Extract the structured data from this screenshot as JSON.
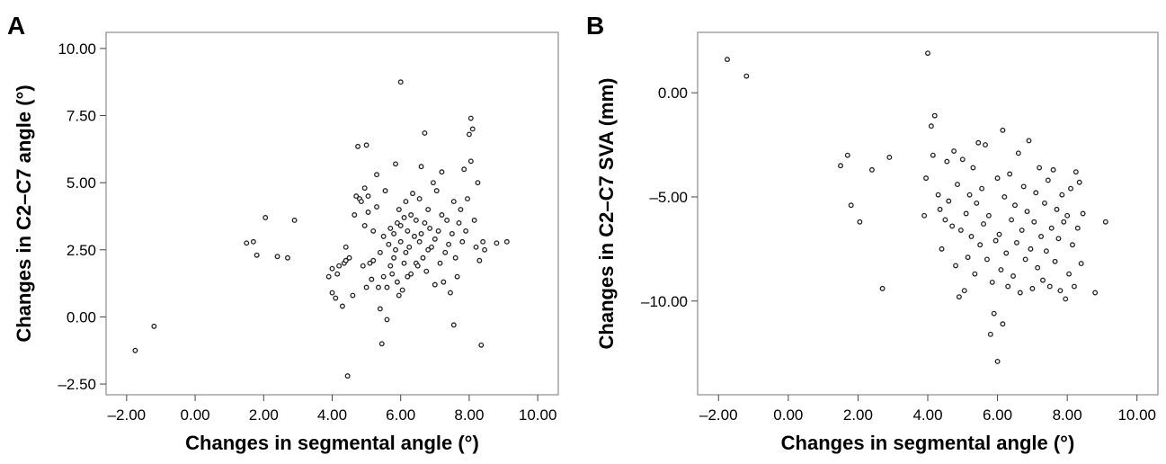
{
  "panels": [
    {
      "letter": "A",
      "chart_data": {
        "type": "scatter",
        "title": "",
        "xlabel": "Changes in segmental angle (°)",
        "ylabel": "Changes in C2–C7 angle (°)",
        "xlim": [
          -2.6,
          10.6
        ],
        "ylim": [
          -2.9,
          10.6
        ],
        "xticks": [
          -2,
          0,
          2,
          4,
          6,
          8,
          10
        ],
        "xtick_labels": [
          "–2.00",
          "0.00",
          "2.00",
          "4.00",
          "6.00",
          "8.00",
          "10.00"
        ],
        "yticks": [
          -2.5,
          0,
          2.5,
          5,
          7.5,
          10
        ],
        "ytick_labels": [
          "–2.50",
          "0.00",
          "2.50",
          "5.00",
          "7.50",
          "10.00"
        ],
        "grid": false,
        "series": [
          {
            "points": [
              [
                -1.75,
                -1.25
              ],
              [
                -1.2,
                -0.35
              ],
              [
                1.5,
                2.75
              ],
              [
                1.7,
                2.8
              ],
              [
                1.8,
                2.3
              ],
              [
                2.05,
                3.7
              ],
              [
                2.4,
                2.25
              ],
              [
                2.7,
                2.2
              ],
              [
                2.9,
                3.6
              ],
              [
                3.9,
                1.5
              ],
              [
                4.0,
                1.8
              ],
              [
                4.0,
                0.9
              ],
              [
                4.1,
                0.7
              ],
              [
                4.15,
                1.6
              ],
              [
                4.2,
                1.9
              ],
              [
                4.3,
                0.4
              ],
              [
                4.35,
                2.0
              ],
              [
                4.4,
                2.6
              ],
              [
                4.4,
                2.1
              ],
              [
                4.45,
                -2.2
              ],
              [
                4.5,
                2.2
              ],
              [
                4.6,
                0.8
              ],
              [
                4.65,
                3.8
              ],
              [
                4.7,
                4.5
              ],
              [
                4.75,
                6.35
              ],
              [
                4.8,
                4.4
              ],
              [
                4.85,
                4.3
              ],
              [
                4.9,
                1.9
              ],
              [
                4.95,
                3.4
              ],
              [
                4.95,
                4.8
              ],
              [
                5.0,
                6.4
              ],
              [
                5.0,
                1.1
              ],
              [
                5.05,
                3.9
              ],
              [
                5.05,
                4.5
              ],
              [
                5.1,
                2.0
              ],
              [
                5.15,
                1.4
              ],
              [
                5.2,
                2.1
              ],
              [
                5.2,
                3.2
              ],
              [
                5.3,
                5.3
              ],
              [
                5.3,
                4.1
              ],
              [
                5.35,
                1.1
              ],
              [
                5.4,
                2.4
              ],
              [
                5.4,
                0.3
              ],
              [
                5.45,
                -1.0
              ],
              [
                5.5,
                3.0
              ],
              [
                5.5,
                1.5
              ],
              [
                5.55,
                4.7
              ],
              [
                5.6,
                1.1
              ],
              [
                5.6,
                -0.1
              ],
              [
                5.65,
                2.7
              ],
              [
                5.7,
                1.9
              ],
              [
                5.7,
                3.3
              ],
              [
                5.75,
                1.6
              ],
              [
                5.8,
                2.2
              ],
              [
                5.8,
                3.1
              ],
              [
                5.85,
                2.5
              ],
              [
                5.85,
                5.7
              ],
              [
                5.9,
                1.3
              ],
              [
                5.9,
                3.5
              ],
              [
                5.95,
                0.8
              ],
              [
                5.95,
                4.0
              ],
              [
                6.0,
                2.8
              ],
              [
                6.0,
                3.4
              ],
              [
                6.0,
                8.75
              ],
              [
                6.05,
                1.0
              ],
              [
                6.1,
                2.0
              ],
              [
                6.1,
                3.7
              ],
              [
                6.15,
                2.4
              ],
              [
                6.15,
                4.3
              ],
              [
                6.2,
                1.5
              ],
              [
                6.2,
                3.2
              ],
              [
                6.25,
                2.6
              ],
              [
                6.3,
                3.8
              ],
              [
                6.3,
                1.6
              ],
              [
                6.35,
                4.6
              ],
              [
                6.4,
                3.0
              ],
              [
                6.45,
                2.0
              ],
              [
                6.45,
                3.6
              ],
              [
                6.5,
                1.9
              ],
              [
                6.55,
                2.8
              ],
              [
                6.55,
                4.4
              ],
              [
                6.6,
                5.6
              ],
              [
                6.6,
                3.1
              ],
              [
                6.65,
                2.2
              ],
              [
                6.7,
                6.85
              ],
              [
                6.7,
                3.5
              ],
              [
                6.75,
                1.7
              ],
              [
                6.8,
                2.5
              ],
              [
                6.8,
                4.0
              ],
              [
                6.85,
                3.3
              ],
              [
                6.9,
                2.6
              ],
              [
                6.95,
                5.0
              ],
              [
                7.0,
                1.2
              ],
              [
                7.0,
                2.9
              ],
              [
                7.05,
                4.7
              ],
              [
                7.1,
                3.2
              ],
              [
                7.15,
                2.0
              ],
              [
                7.2,
                5.4
              ],
              [
                7.2,
                3.8
              ],
              [
                7.25,
                1.3
              ],
              [
                7.3,
                2.4
              ],
              [
                7.35,
                3.6
              ],
              [
                7.4,
                2.7
              ],
              [
                7.45,
                0.9
              ],
              [
                7.5,
                3.1
              ],
              [
                7.55,
                4.3
              ],
              [
                7.55,
                -0.3
              ],
              [
                7.6,
                2.2
              ],
              [
                7.65,
                1.5
              ],
              [
                7.7,
                3.5
              ],
              [
                7.75,
                4.0
              ],
              [
                7.8,
                2.8
              ],
              [
                7.85,
                5.5
              ],
              [
                7.9,
                3.2
              ],
              [
                7.95,
                4.4
              ],
              [
                8.0,
                6.8
              ],
              [
                8.05,
                7.4
              ],
              [
                8.05,
                5.8
              ],
              [
                8.1,
                7.0
              ],
              [
                8.15,
                3.6
              ],
              [
                8.2,
                2.6
              ],
              [
                8.25,
                5.0
              ],
              [
                8.3,
                2.1
              ],
              [
                8.35,
                -1.05
              ],
              [
                8.4,
                2.8
              ],
              [
                8.45,
                2.5
              ],
              [
                8.8,
                2.75
              ],
              [
                9.1,
                2.8
              ]
            ]
          }
        ]
      }
    },
    {
      "letter": "B",
      "chart_data": {
        "type": "scatter",
        "title": "",
        "xlabel": "Changes in segmental angle (°)",
        "ylabel": "Changes in C2–C7 SVA (mm)",
        "xlim": [
          -2.6,
          10.6
        ],
        "ylim": [
          -14.5,
          2.9
        ],
        "xticks": [
          -2,
          0,
          2,
          4,
          6,
          8,
          10
        ],
        "xtick_labels": [
          "–2.00",
          "0.00",
          "2.00",
          "4.00",
          "6.00",
          "8.00",
          "10.00"
        ],
        "yticks": [
          -10,
          -5,
          0
        ],
        "ytick_labels": [
          "–10.00",
          "–5.00",
          "0.00"
        ],
        "grid": false,
        "series": [
          {
            "points": [
              [
                -1.75,
                1.6
              ],
              [
                -1.2,
                0.8
              ],
              [
                1.5,
                -3.5
              ],
              [
                1.7,
                -3.0
              ],
              [
                1.8,
                -5.4
              ],
              [
                2.05,
                -6.2
              ],
              [
                2.4,
                -3.7
              ],
              [
                2.7,
                -9.4
              ],
              [
                2.9,
                -3.1
              ],
              [
                3.9,
                -5.9
              ],
              [
                3.95,
                -4.1
              ],
              [
                4.0,
                1.9
              ],
              [
                4.1,
                -1.6
              ],
              [
                4.15,
                -3.0
              ],
              [
                4.2,
                -1.1
              ],
              [
                4.3,
                -4.9
              ],
              [
                4.35,
                -5.6
              ],
              [
                4.4,
                -7.5
              ],
              [
                4.5,
                -6.1
              ],
              [
                4.55,
                -3.3
              ],
              [
                4.6,
                -5.2
              ],
              [
                4.7,
                -6.4
              ],
              [
                4.75,
                -2.8
              ],
              [
                4.8,
                -8.3
              ],
              [
                4.85,
                -4.4
              ],
              [
                4.9,
                -9.8
              ],
              [
                4.95,
                -6.6
              ],
              [
                5.0,
                -3.2
              ],
              [
                5.05,
                -9.5
              ],
              [
                5.1,
                -5.8
              ],
              [
                5.15,
                -7.9
              ],
              [
                5.2,
                -4.9
              ],
              [
                5.25,
                -6.9
              ],
              [
                5.3,
                -3.6
              ],
              [
                5.35,
                -8.7
              ],
              [
                5.4,
                -5.3
              ],
              [
                5.45,
                -2.4
              ],
              [
                5.5,
                -7.3
              ],
              [
                5.55,
                -4.6
              ],
              [
                5.6,
                -6.3
              ],
              [
                5.65,
                -2.5
              ],
              [
                5.7,
                -8.0
              ],
              [
                5.75,
                -5.9
              ],
              [
                5.8,
                -11.6
              ],
              [
                5.85,
                -9.1
              ],
              [
                5.9,
                -10.6
              ],
              [
                5.95,
                -7.1
              ],
              [
                6.0,
                -4.1
              ],
              [
                6.0,
                -12.9
              ],
              [
                6.05,
                -6.8
              ],
              [
                6.1,
                -8.5
              ],
              [
                6.15,
                -1.8
              ],
              [
                6.15,
                -11.1
              ],
              [
                6.2,
                -5.0
              ],
              [
                6.25,
                -7.7
              ],
              [
                6.3,
                -9.3
              ],
              [
                6.35,
                -3.9
              ],
              [
                6.4,
                -6.1
              ],
              [
                6.45,
                -8.8
              ],
              [
                6.5,
                -5.4
              ],
              [
                6.55,
                -7.2
              ],
              [
                6.6,
                -2.9
              ],
              [
                6.65,
                -9.6
              ],
              [
                6.7,
                -6.6
              ],
              [
                6.75,
                -4.5
              ],
              [
                6.8,
                -8.0
              ],
              [
                6.85,
                -5.7
              ],
              [
                6.9,
                -2.3
              ],
              [
                6.95,
                -7.5
              ],
              [
                7.0,
                -9.4
              ],
              [
                7.05,
                -6.2
              ],
              [
                7.1,
                -4.8
              ],
              [
                7.15,
                -8.4
              ],
              [
                7.2,
                -3.6
              ],
              [
                7.25,
                -6.9
              ],
              [
                7.3,
                -9.0
              ],
              [
                7.35,
                -5.3
              ],
              [
                7.4,
                -7.6
              ],
              [
                7.45,
                -4.2
              ],
              [
                7.5,
                -9.3
              ],
              [
                7.55,
                -6.5
              ],
              [
                7.6,
                -3.7
              ],
              [
                7.65,
                -8.1
              ],
              [
                7.7,
                -5.6
              ],
              [
                7.75,
                -7.0
              ],
              [
                7.8,
                -9.5
              ],
              [
                7.85,
                -4.9
              ],
              [
                7.9,
                -6.2
              ],
              [
                7.95,
                -9.9
              ],
              [
                8.0,
                -5.9
              ],
              [
                8.05,
                -8.7
              ],
              [
                8.1,
                -4.6
              ],
              [
                8.15,
                -7.3
              ],
              [
                8.2,
                -9.3
              ],
              [
                8.25,
                -3.8
              ],
              [
                8.3,
                -6.5
              ],
              [
                8.35,
                -4.3
              ],
              [
                8.4,
                -8.2
              ],
              [
                8.45,
                -5.8
              ],
              [
                8.8,
                -9.6
              ],
              [
                9.1,
                -6.2
              ]
            ]
          }
        ]
      }
    }
  ]
}
